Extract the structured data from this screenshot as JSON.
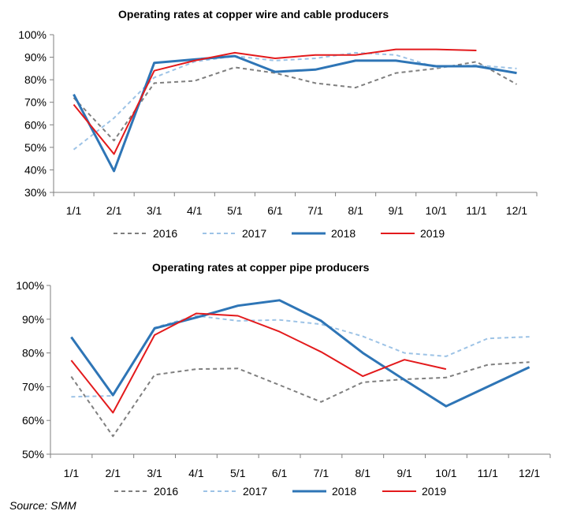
{
  "colors": {
    "s2016": "#7f7f7f",
    "s2017": "#9dc3e6",
    "s2018": "#2e75b6",
    "s2019": "#e31a1c",
    "axis": "#7f7f7f"
  },
  "source": "Source: SMM",
  "chart_data": [
    {
      "type": "line",
      "title": "Operating rates at copper wire and cable producers",
      "categories": [
        "1/1",
        "2/1",
        "3/1",
        "4/1",
        "5/1",
        "6/1",
        "7/1",
        "8/1",
        "9/1",
        "10/1",
        "11/1",
        "12/1"
      ],
      "ylim": [
        0.3,
        1.0
      ],
      "yticks": [
        "100%",
        "90%",
        "80%",
        "70%",
        "60%",
        "50%",
        "40%",
        "30%"
      ],
      "xlabel": "",
      "ylabel": "",
      "legend": "bottom",
      "grid": false,
      "series": [
        {
          "name": "2016",
          "style": "dashed",
          "values": [
            0.72,
            0.53,
            0.785,
            0.795,
            0.855,
            0.83,
            0.785,
            0.765,
            0.83,
            0.85,
            0.88,
            0.78
          ]
        },
        {
          "name": "2017",
          "style": "dashed",
          "values": [
            0.49,
            0.63,
            0.81,
            0.88,
            0.905,
            0.885,
            0.895,
            0.92,
            0.91,
            0.855,
            0.865,
            0.85
          ]
        },
        {
          "name": "2018",
          "style": "solid",
          "values": [
            0.735,
            0.395,
            0.875,
            0.89,
            0.905,
            0.835,
            0.845,
            0.885,
            0.885,
            0.86,
            0.86,
            0.83
          ]
        },
        {
          "name": "2019",
          "style": "solid",
          "values": [
            0.69,
            0.47,
            0.84,
            0.885,
            0.92,
            0.895,
            0.91,
            0.91,
            0.935,
            0.935,
            0.93,
            null
          ]
        }
      ]
    },
    {
      "type": "line",
      "title": "Operating rates at copper pipe producers",
      "categories": [
        "1/1",
        "2/1",
        "3/1",
        "4/1",
        "5/1",
        "6/1",
        "7/1",
        "8/1",
        "9/1",
        "10/1",
        "11/1",
        "12/1"
      ],
      "ylim": [
        0.5,
        1.0
      ],
      "yticks": [
        "100%",
        "90%",
        "80%",
        "70%",
        "60%",
        "50%"
      ],
      "xlabel": "",
      "ylabel": "",
      "legend": "bottom",
      "grid": false,
      "series": [
        {
          "name": "2016",
          "style": "dashed",
          "values": [
            0.73,
            0.553,
            0.735,
            0.752,
            0.754,
            0.705,
            0.655,
            0.713,
            0.722,
            0.727,
            0.765,
            0.773
          ]
        },
        {
          "name": "2017",
          "style": "dashed",
          "values": [
            0.67,
            0.673,
            0.875,
            0.91,
            0.895,
            0.898,
            0.885,
            0.849,
            0.8,
            0.79,
            0.843,
            0.848
          ]
        },
        {
          "name": "2018",
          "style": "solid",
          "values": [
            0.847,
            0.675,
            0.873,
            0.905,
            0.94,
            0.956,
            0.895,
            0.8,
            0.72,
            0.642,
            0.7,
            0.758
          ]
        },
        {
          "name": "2019",
          "style": "solid",
          "values": [
            0.778,
            0.623,
            0.853,
            0.917,
            0.91,
            0.863,
            0.803,
            0.731,
            0.78,
            0.752,
            null,
            null
          ]
        }
      ]
    }
  ]
}
